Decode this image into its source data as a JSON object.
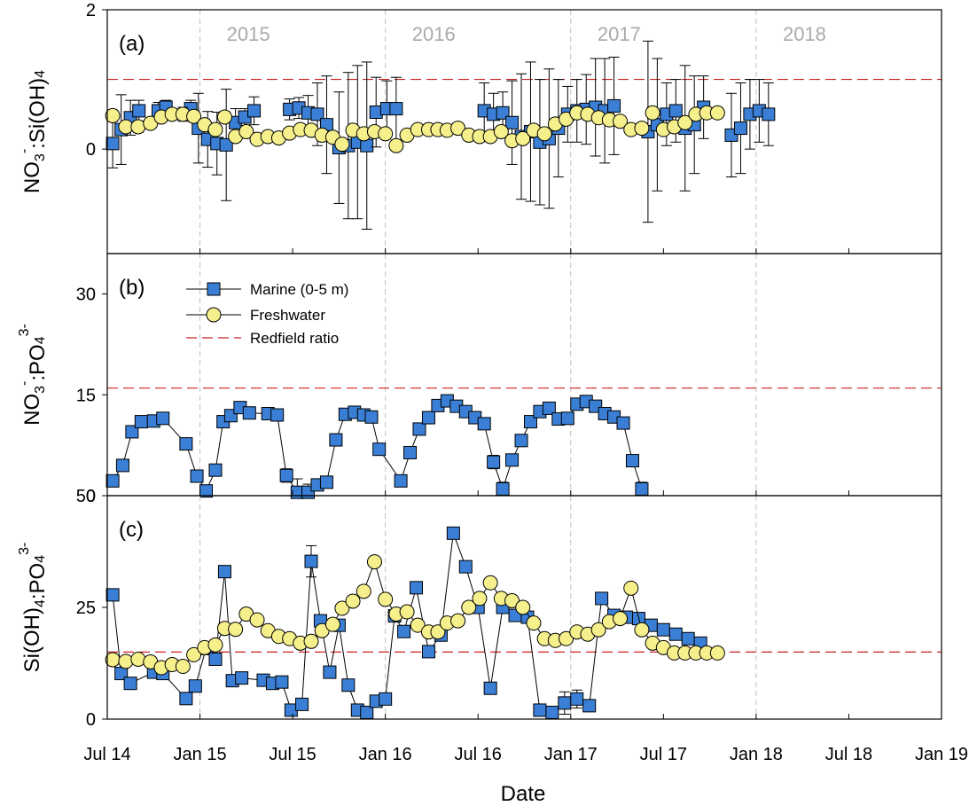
{
  "figure": {
    "xlabel": "Date",
    "x_ticks": [
      "Jul 14",
      "Jan 15",
      "Jul 15",
      "Jan 16",
      "Jul 16",
      "Jan 17",
      "Jul 17",
      "Jan 18",
      "Jul 18",
      "Jan 19"
    ],
    "year_labels": [
      "2015",
      "2016",
      "2017",
      "2018"
    ],
    "colors": {
      "marine_fill": "#3a7fd5",
      "fresh_fill": "#f6f08c",
      "redfield": "#cc2222",
      "year_grid": "#c0c0c0"
    },
    "legend": {
      "marine": "Marine (0-5 m)",
      "fresh": "Freshwater",
      "redfield": "Redfield ratio"
    }
  },
  "chart_data": [
    {
      "panel": "(a)",
      "type": "scatter",
      "ylabel_parts": [
        "NO",
        "3",
        "-",
        ":Si(OH)",
        "4"
      ],
      "ylim": [
        -1.5,
        2
      ],
      "yticks": [
        "0",
        "2"
      ],
      "ytick_values": [
        0,
        2
      ],
      "redfield": 1,
      "series": [
        {
          "name": "Marine (0-5 m)",
          "x": [
            0.35,
            0.9,
            1.5,
            2.05,
            3.3,
            3.8,
            5.4,
            5.9,
            6.5,
            7.1,
            7.7,
            8.3,
            8.9,
            9.5,
            11.8,
            12.4,
            13.0,
            13.6,
            14.2,
            15.0,
            15.6,
            16.2,
            16.8,
            17.4,
            18.1,
            18.7,
            24.4,
            25.0,
            25.6,
            26.2,
            26.8,
            27.4,
            28.0,
            28.6,
            29.2,
            29.8,
            30.4,
            31.0,
            31.6,
            32.2,
            32.8,
            35.0,
            35.6,
            36.2,
            36.8,
            37.4,
            38.0,
            38.6,
            40.4,
            41.0,
            41.6,
            42.2,
            42.8
          ],
          "y": [
            0.08,
            0.28,
            0.45,
            0.55,
            0.55,
            0.6,
            0.58,
            0.3,
            0.14,
            0.08,
            0.06,
            0.38,
            0.46,
            0.55,
            0.57,
            0.59,
            0.52,
            0.5,
            0.35,
            0.02,
            0.05,
            0.1,
            0.05,
            0.53,
            0.58,
            0.58,
            0.55,
            0.5,
            0.52,
            0.38,
            0.18,
            0.25,
            0.1,
            0.15,
            0.3,
            0.5,
            0.55,
            0.57,
            0.6,
            0.55,
            0.62,
            0.25,
            0.35,
            0.5,
            0.55,
            0.3,
            0.35,
            0.6,
            0.2,
            0.3,
            0.5,
            0.55,
            0.5
          ],
          "err": [
            0.35,
            0.5,
            0.25,
            0.15,
            0.12,
            0.1,
            0.12,
            0.5,
            0.4,
            0.45,
            0.8,
            0.2,
            0.12,
            0.2,
            0.15,
            0.15,
            0.25,
            0.45,
            0.7,
            0.8,
            1.05,
            1.1,
            1.2,
            0.5,
            0.4,
            0.45,
            0.4,
            0.3,
            0.3,
            0.6,
            0.9,
            1.0,
            0.9,
            1.0,
            0.7,
            0.4,
            0.45,
            0.5,
            0.7,
            0.75,
            0.7,
            1.3,
            0.95,
            0.45,
            0.45,
            0.9,
            0.7,
            0.45,
            0.6,
            0.65,
            0.5,
            0.45,
            0.45
          ]
        },
        {
          "name": "Freshwater",
          "x": [
            0.35,
            1.2,
            2.0,
            2.8,
            3.5,
            4.2,
            4.9,
            5.6,
            6.3,
            7.0,
            7.6,
            8.3,
            9.0,
            9.7,
            10.4,
            11.1,
            11.8,
            12.5,
            13.2,
            13.9,
            14.6,
            15.2,
            15.9,
            16.6,
            17.3,
            18.0,
            18.7,
            19.4,
            20.1,
            20.8,
            21.4,
            22.0,
            22.7,
            23.4,
            24.1,
            24.8,
            25.5,
            26.2,
            26.9,
            27.6,
            28.3,
            29.0,
            29.7,
            30.4,
            31.1,
            31.8,
            32.5,
            33.2,
            33.9,
            34.6,
            35.3,
            36.0,
            36.7,
            37.4,
            38.1,
            38.8,
            39.5
          ],
          "y": [
            0.48,
            0.32,
            0.32,
            0.37,
            0.46,
            0.5,
            0.5,
            0.47,
            0.35,
            0.28,
            0.46,
            0.18,
            0.25,
            0.14,
            0.18,
            0.16,
            0.23,
            0.28,
            0.27,
            0.2,
            0.17,
            0.07,
            0.27,
            0.22,
            0.25,
            0.22,
            0.05,
            0.2,
            0.28,
            0.28,
            0.28,
            0.27,
            0.3,
            0.2,
            0.18,
            0.18,
            0.25,
            0.12,
            0.15,
            0.27,
            0.22,
            0.36,
            0.43,
            0.52,
            0.5,
            0.45,
            0.42,
            0.4,
            0.28,
            0.3,
            0.52,
            0.28,
            0.32,
            0.38,
            0.5,
            0.52,
            0.52
          ],
          "err": [
            0.08,
            0.05,
            0.08,
            0.06,
            0.07,
            0.08,
            0.1,
            0.08,
            0.08,
            0.06,
            0.08,
            0.05,
            0.05,
            0.04,
            0.05,
            0.05,
            0.05,
            0.06,
            0.06,
            0.05,
            0.05,
            0.04,
            0.06,
            0.06,
            0.06,
            0.05,
            0.04,
            0.05,
            0.05,
            0.05,
            0.06,
            0.05,
            0.06,
            0.05,
            0.05,
            0.05,
            0.05,
            0.05,
            0.05,
            0.06,
            0.05,
            0.06,
            0.07,
            0.08,
            0.08,
            0.07,
            0.06,
            0.06,
            0.05,
            0.05,
            0.08,
            0.05,
            0.06,
            0.06,
            0.06,
            0.07,
            0.07
          ]
        }
      ]
    },
    {
      "panel": "(b)",
      "type": "line",
      "ylabel_parts": [
        "NO",
        "3",
        "-",
        ":PO",
        "4",
        "3-"
      ],
      "ylim": [
        0,
        36
      ],
      "yticks": [
        "0",
        "15",
        "30"
      ],
      "ytick_values": [
        0,
        15,
        30
      ],
      "redfield": 16,
      "series": [
        {
          "name": "Marine (0-5 m)",
          "x": [
            0.35,
            1.0,
            1.6,
            2.2,
            3.0,
            3.6,
            5.1,
            5.8,
            6.4,
            7.0,
            7.5,
            8.0,
            8.6,
            9.2,
            10.4,
            11.0,
            11.6,
            12.3,
            13.0,
            13.6,
            14.2,
            14.8,
            15.4,
            16.0,
            16.6,
            17.1,
            17.6,
            19.0,
            19.6,
            20.2,
            20.8,
            21.4,
            22.0,
            22.6,
            23.2,
            23.8,
            24.4,
            25.0,
            25.6,
            26.2,
            26.8,
            27.4,
            28.0,
            28.6,
            29.2,
            29.8,
            30.4,
            31.0,
            31.6,
            32.2,
            32.8,
            33.4,
            34.0,
            34.6
          ],
          "y": [
            2.2,
            4.5,
            9.5,
            11.0,
            11.1,
            11.5,
            7.7,
            2.9,
            0.7,
            3.8,
            11.0,
            11.9,
            13.1,
            12.3,
            12.2,
            12.0,
            3.0,
            0.5,
            0.5,
            1.6,
            2.0,
            8.3,
            12.1,
            12.4,
            12.0,
            11.7,
            6.9,
            2.2,
            6.4,
            9.9,
            11.6,
            13.4,
            14.1,
            13.3,
            12.5,
            11.6,
            10.7,
            5.0,
            1.0,
            5.3,
            8.2,
            11.0,
            12.5,
            13.0,
            11.4,
            11.5,
            13.6,
            14.0,
            13.3,
            12.2,
            11.7,
            10.8,
            5.2,
            1.0
          ],
          "err": [
            0.5,
            0.6,
            0.5,
            0.5,
            0.5,
            0.5,
            0.6,
            0.8,
            0.8,
            0.7,
            0.5,
            0.5,
            0.5,
            0.5,
            0.5,
            0.5,
            1.0,
            2.0,
            1.2,
            0.8,
            0.8,
            0.6,
            0.5,
            0.5,
            0.5,
            0.5,
            0.8,
            0.8,
            0.7,
            0.6,
            0.6,
            0.5,
            0.5,
            0.5,
            0.5,
            0.5,
            0.6,
            1.0,
            1.0,
            0.8,
            0.7,
            0.6,
            0.6,
            0.6,
            0.6,
            0.6,
            0.5,
            0.5,
            0.5,
            0.5,
            0.5,
            0.5,
            0.8,
            1.0
          ]
        }
      ]
    },
    {
      "panel": "(c)",
      "type": "line",
      "ylabel_parts": [
        "Si(OH)",
        "4",
        "",
        ":PO",
        "4",
        "3-"
      ],
      "ylim": [
        0,
        50
      ],
      "yticks": [
        "0",
        "25",
        "50"
      ],
      "ytick_values": [
        0,
        25,
        50
      ],
      "redfield": 15,
      "series": [
        {
          "name": "Marine (0-5 m)",
          "x": [
            0.35,
            0.9,
            1.5,
            3.0,
            3.6,
            5.1,
            5.7,
            6.4,
            7.0,
            7.6,
            8.1,
            8.7,
            10.1,
            10.7,
            11.3,
            11.9,
            12.6,
            13.2,
            13.8,
            14.4,
            15.0,
            15.6,
            16.2,
            16.8,
            17.4,
            18.0,
            18.6,
            19.2,
            20.0,
            20.8,
            21.6,
            22.4,
            23.2,
            24.0,
            24.8,
            25.6,
            26.4,
            27.2,
            28.0,
            28.8,
            29.6,
            30.4,
            31.2,
            32.0,
            32.8,
            33.6,
            34.4,
            35.2,
            36.0,
            36.8,
            37.6,
            38.4
          ],
          "y": [
            27.8,
            10.2,
            8.0,
            10.5,
            10.2,
            4.6,
            7.4,
            15.8,
            13.4,
            33.0,
            8.6,
            9.2,
            8.7,
            8.0,
            8.3,
            2.0,
            3.3,
            35.3,
            22.0,
            10.5,
            21.0,
            7.6,
            2.0,
            1.5,
            4.0,
            4.5,
            23.1,
            19.6,
            29.4,
            15.1,
            18.8,
            41.6,
            34.1,
            25.0,
            6.9,
            25.0,
            23.2,
            22.8,
            2.0,
            1.5,
            3.6,
            4.5,
            3.0,
            27.0,
            23.2,
            22.8,
            22.5,
            21.0,
            20.0,
            19.0,
            18.0,
            17.0
          ],
          "err": [
            0.8,
            0.8,
            0.8,
            0.8,
            0.8,
            0.8,
            0.8,
            0.8,
            0.8,
            0.8,
            0.8,
            0.8,
            0.8,
            0.8,
            0.8,
            0.8,
            0.8,
            3.5,
            1.0,
            0.8,
            0.8,
            0.8,
            0.8,
            0.8,
            0.8,
            1.0,
            0.8,
            0.8,
            0.8,
            0.8,
            0.8,
            0.8,
            0.8,
            0.8,
            0.8,
            0.8,
            0.8,
            0.8,
            0.8,
            0.8,
            2.5,
            2.0,
            0.8,
            0.8,
            0.8,
            0.8,
            0.8,
            0.8,
            0.8,
            0.8,
            0.8,
            0.8
          ]
        },
        {
          "name": "Freshwater",
          "x": [
            0.35,
            1.2,
            2.0,
            2.8,
            3.5,
            4.2,
            4.9,
            5.6,
            6.3,
            7.0,
            7.6,
            8.3,
            9.0,
            9.7,
            10.4,
            11.1,
            11.8,
            12.5,
            13.2,
            13.9,
            14.6,
            15.2,
            15.9,
            16.6,
            17.3,
            18.0,
            18.7,
            19.4,
            20.1,
            20.8,
            21.4,
            22.0,
            22.7,
            23.4,
            24.1,
            24.8,
            25.5,
            26.2,
            26.9,
            27.6,
            28.3,
            29.0,
            29.7,
            30.4,
            31.1,
            31.8,
            32.5,
            33.2,
            33.9,
            34.6,
            35.3,
            36.0,
            36.7,
            37.4,
            38.1,
            38.8,
            39.5
          ],
          "y": [
            13.3,
            12.9,
            13.4,
            12.8,
            11.5,
            12.2,
            11.8,
            14.4,
            16.0,
            16.6,
            20.3,
            20.1,
            23.5,
            22.2,
            19.8,
            18.5,
            18.0,
            17.0,
            17.4,
            19.8,
            21.2,
            24.8,
            26.4,
            28.6,
            35.2,
            26.8,
            23.5,
            24.0,
            21.0,
            19.5,
            19.5,
            21.5,
            22.0,
            25.0,
            27.0,
            30.5,
            27.0,
            26.5,
            25.0,
            21.5,
            18.0,
            17.6,
            18.0,
            19.5,
            19.0,
            20.0,
            21.8,
            22.5,
            29.3,
            20.0,
            17.0,
            16.0,
            14.8,
            14.8,
            14.8,
            14.8,
            14.8
          ],
          "err": [
            0.6,
            0.6,
            0.6,
            0.6,
            0.6,
            0.6,
            0.6,
            0.6,
            0.6,
            0.6,
            0.6,
            0.6,
            0.6,
            0.6,
            0.6,
            0.6,
            0.6,
            0.6,
            0.6,
            0.6,
            0.6,
            0.6,
            0.6,
            0.6,
            0.8,
            0.6,
            0.6,
            0.6,
            0.6,
            0.6,
            0.6,
            0.6,
            0.6,
            0.6,
            0.6,
            0.6,
            0.6,
            0.6,
            0.6,
            0.6,
            0.6,
            0.6,
            0.6,
            0.6,
            0.6,
            0.6,
            0.6,
            0.6,
            0.6,
            0.6,
            0.6,
            0.6,
            0.6,
            0.6,
            0.6,
            0.6,
            0.6
          ]
        }
      ]
    }
  ]
}
